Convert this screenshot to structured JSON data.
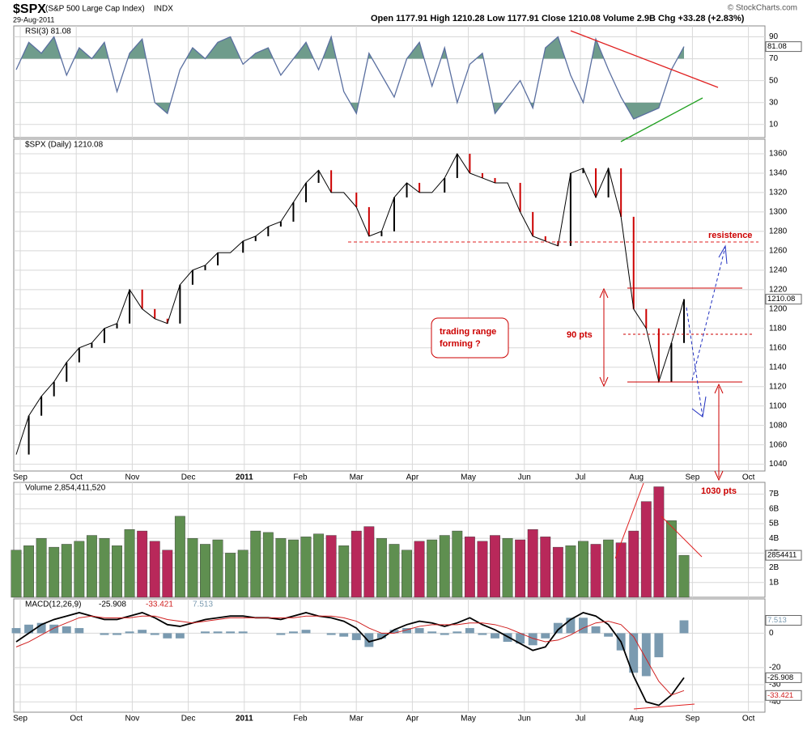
{
  "header": {
    "symbol": "$SPX",
    "name": "(S&P 500 Large Cap Index)",
    "exchange": "INDX",
    "date": "29-Aug-2011",
    "quote": "Open 1177.91  High 1210.28  Low 1177.91  Close 1210.08  Volume 2.9B  Chg +33.28 (+2.83%)",
    "credit": "© StockCharts.com"
  },
  "chart_data": [
    {
      "type": "line",
      "label": "RSI(3) 81.08",
      "value_tag": "81.08",
      "color": "#5a6fa0",
      "fill_color": "#6f9c8c",
      "ylim": [
        -2,
        100
      ],
      "yticks": [
        10,
        30,
        50,
        70,
        90
      ],
      "series": [
        {
          "name": "RSI(3)",
          "values": [
            60,
            85,
            75,
            90,
            55,
            80,
            70,
            85,
            40,
            75,
            88,
            30,
            20,
            60,
            80,
            70,
            85,
            90,
            65,
            75,
            80,
            55,
            70,
            85,
            60,
            90,
            40,
            20,
            75,
            55,
            35,
            70,
            85,
            45,
            80,
            30,
            65,
            75,
            20,
            35,
            50,
            25,
            80,
            90,
            55,
            30,
            88,
            60,
            35,
            15,
            20,
            25,
            60,
            81.08
          ]
        }
      ]
    },
    {
      "type": "price",
      "label": "$SPX (Daily) 1210.08",
      "value_tag": "1210.08",
      "color": "#000000",
      "ylim": [
        1033,
        1375
      ],
      "yticks": [
        1040,
        1060,
        1080,
        1100,
        1120,
        1140,
        1160,
        1180,
        1200,
        1220,
        1240,
        1260,
        1280,
        1300,
        1320,
        1340,
        1360
      ],
      "x_labels": [
        "Sep",
        "Oct",
        "Nov",
        "Dec",
        "2011",
        "Feb",
        "Mar",
        "Apr",
        "May",
        "Jun",
        "Jul",
        "Aug",
        "Sep",
        "Oct"
      ],
      "annotations": [
        "resistence",
        "trading range",
        "forming ?",
        "90 pts",
        "1030 pts"
      ],
      "series": [
        {
          "name": "$SPX",
          "values": [
            1050,
            1090,
            1110,
            1125,
            1145,
            1160,
            1165,
            1180,
            1185,
            1220,
            1200,
            1190,
            1185,
            1225,
            1240,
            1245,
            1258,
            1258,
            1270,
            1275,
            1285,
            1290,
            1310,
            1330,
            1343,
            1320,
            1320,
            1305,
            1275,
            1280,
            1315,
            1330,
            1320,
            1320,
            1335,
            1360,
            1340,
            1335,
            1330,
            1330,
            1300,
            1275,
            1270,
            1265,
            1340,
            1345,
            1315,
            1345,
            1295,
            1200,
            1180,
            1125,
            1165,
            1210.08
          ]
        }
      ]
    },
    {
      "type": "volume",
      "label": "Volume 2,854,411,520",
      "value_tag": "2854411",
      "up_color": "#5f8f50",
      "down_color": "#b8285a",
      "ylim": [
        0,
        7.8
      ],
      "yticks": [
        {
          "value": 1,
          "label": "1B"
        },
        {
          "value": 2,
          "label": "2B"
        },
        {
          "value": 3,
          "label": "3B"
        },
        {
          "value": 4,
          "label": "4B"
        },
        {
          "value": 5,
          "label": "5B"
        },
        {
          "value": 6,
          "label": "6B"
        },
        {
          "value": 7,
          "label": "7B"
        }
      ],
      "series": [
        {
          "name": "Volume",
          "values": [
            3.2,
            3.5,
            4.0,
            3.4,
            3.6,
            3.8,
            4.2,
            4.0,
            3.5,
            4.6,
            4.5,
            3.8,
            3.2,
            5.5,
            4.0,
            3.6,
            3.9,
            3.0,
            3.2,
            4.5,
            4.4,
            4.0,
            3.9,
            4.1,
            4.3,
            4.2,
            3.5,
            4.5,
            4.8,
            4.0,
            3.6,
            3.2,
            3.8,
            3.9,
            4.2,
            4.5,
            4.1,
            3.8,
            4.2,
            4.0,
            3.9,
            4.6,
            4.1,
            3.4,
            3.5,
            3.8,
            3.6,
            3.9,
            3.7,
            4.5,
            6.5,
            7.5,
            5.2,
            2.85
          ]
        }
      ]
    },
    {
      "type": "macd",
      "label": "MACD(12,26,9)",
      "ylim": [
        -46,
        20
      ],
      "yticks": [
        -40,
        -30,
        -20,
        0
      ],
      "x_labels": [
        "Sep",
        "Oct",
        "Nov",
        "Dec",
        "2011",
        "Feb",
        "Mar",
        "Apr",
        "May",
        "Jun",
        "Jul",
        "Aug",
        "Sep",
        "Oct"
      ],
      "series": [
        {
          "name": "-25.908",
          "color": "#000000",
          "values": [
            -5,
            0,
            5,
            8,
            10,
            12,
            10,
            8,
            8,
            10,
            12,
            9,
            5,
            4,
            6,
            8,
            9,
            10,
            10,
            9,
            9,
            8,
            10,
            12,
            10,
            9,
            7,
            3,
            -5,
            -3,
            2,
            5,
            7,
            6,
            4,
            6,
            9,
            5,
            2,
            -2,
            -6,
            -10,
            -8,
            2,
            8,
            12,
            10,
            5,
            -5,
            -25,
            -40,
            -42,
            -36,
            -25.908
          ]
        },
        {
          "name": "-33.421",
          "color": "#d02020",
          "values": [
            -8,
            -5,
            -1,
            3,
            6,
            9,
            10,
            9,
            9,
            9,
            10,
            10,
            8,
            7,
            6,
            7,
            8,
            9,
            9,
            9,
            9,
            9,
            9,
            10,
            10,
            10,
            9,
            7,
            3,
            0,
            0,
            2,
            4,
            5,
            5,
            5,
            6,
            6,
            5,
            3,
            0,
            -3,
            -5,
            -4,
            -1,
            3,
            6,
            7,
            5,
            -2,
            -15,
            -28,
            -36,
            -33.421
          ]
        },
        {
          "name": "7.513",
          "color": "#7a9ab0",
          "values": [
            3,
            5,
            6,
            5,
            4,
            3,
            0,
            -1,
            -1,
            1,
            2,
            -1,
            -3,
            -3,
            0,
            1,
            1,
            1,
            1,
            0,
            0,
            -1,
            1,
            2,
            0,
            -1,
            -2,
            -4,
            -8,
            -3,
            2,
            3,
            3,
            1,
            -1,
            1,
            3,
            -1,
            -3,
            -5,
            -6,
            -7,
            -3,
            6,
            9,
            9,
            4,
            -2,
            -10,
            -23,
            -25,
            -14,
            0,
            7.513
          ]
        }
      ]
    }
  ]
}
